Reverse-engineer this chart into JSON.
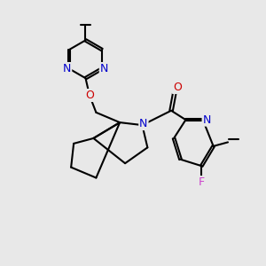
{
  "bg_color": "#e8e8e8",
  "atom_colors": {
    "N": "#0000cc",
    "O": "#cc0000",
    "F": "#cc44cc"
  },
  "bond_color": "#000000",
  "bond_width": 1.5,
  "figsize": [
    3.0,
    3.0
  ],
  "dpi": 100,
  "xlim": [
    0,
    10
  ],
  "ylim": [
    0,
    10
  ]
}
